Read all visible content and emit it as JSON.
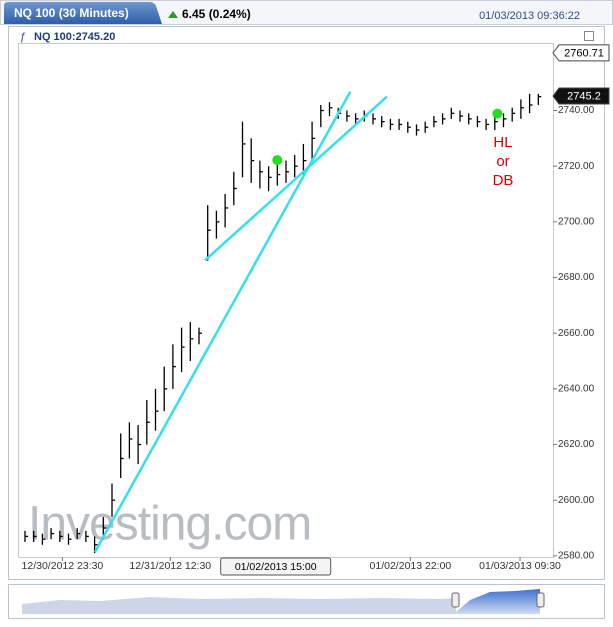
{
  "chart_data": {
    "type": "ohlc",
    "title": "NQ 100 (30 Minutes)",
    "change": "6.45 (0.24%)",
    "timestamp": "01/03/2013 09:36:22",
    "symbol_label": "NQ 100:2745.20",
    "color": "#000000",
    "high": [
      2589,
      2589,
      2588,
      2590,
      2589,
      2588,
      2590,
      2589,
      2587,
      2594,
      2606,
      2624,
      2628,
      2627,
      2636,
      2640,
      2648,
      2656,
      2662,
      2664,
      2662,
      2706,
      2704,
      2710,
      2718,
      2736,
      2730,
      2722,
      2720,
      2721,
      2722,
      2724,
      2728,
      2736,
      2742,
      2743,
      2741,
      2740,
      2739,
      2740,
      2739,
      2738,
      2737,
      2737,
      2736,
      2735,
      2736,
      2738,
      2739,
      2741,
      2740,
      2739,
      2738,
      2737,
      2738,
      2739,
      2741,
      2744,
      2746,
      2746
    ],
    "low": [
      2585,
      2585,
      2584,
      2586,
      2585,
      2584,
      2586,
      2585,
      2581,
      2586,
      2594,
      2608,
      2615,
      2613,
      2620,
      2625,
      2632,
      2640,
      2646,
      2650,
      2656,
      2686,
      2694,
      2698,
      2706,
      2716,
      2714,
      2712,
      2711,
      2713,
      2714,
      2716,
      2717,
      2722,
      2734,
      2738,
      2737,
      2736,
      2735,
      2736,
      2735,
      2734,
      2733,
      2733,
      2732,
      2731,
      2732,
      2734,
      2735,
      2737,
      2736,
      2735,
      2734,
      2733,
      2733,
      2734,
      2736,
      2737,
      2739,
      2742
    ],
    "close": [
      2587,
      2587,
      2586,
      2588,
      2587,
      2586,
      2588,
      2587,
      2584,
      2590,
      2600,
      2615,
      2622,
      2620,
      2628,
      2632,
      2640,
      2648,
      2655,
      2658,
      2660,
      2697,
      2700,
      2705,
      2712,
      2728,
      2722,
      2718,
      2716,
      2717,
      2718,
      2720,
      2722,
      2730,
      2740,
      2741,
      2739,
      2738,
      2737,
      2738,
      2737,
      2736,
      2735,
      2735,
      2734,
      2733,
      2734,
      2736,
      2737,
      2739,
      2738,
      2737,
      2736,
      2735,
      2736,
      2737,
      2739,
      2741,
      2742,
      2745
    ],
    "ylim": [
      2579.6,
      2763.9
    ],
    "yticks": [
      {
        "value": 2580,
        "label": "2580.00"
      },
      {
        "value": 2600,
        "label": "2600.00"
      },
      {
        "value": 2620,
        "label": "2620.00"
      },
      {
        "value": 2640,
        "label": "2640.00"
      },
      {
        "value": 2660,
        "label": "2660.00"
      },
      {
        "value": 2680,
        "label": "2680.00"
      },
      {
        "value": 2700,
        "label": "2700.00"
      },
      {
        "value": 2720,
        "label": "2720.00"
      },
      {
        "value": 2740,
        "label": "2740.00"
      }
    ],
    "xticks": [
      {
        "value": 4.3,
        "label": "12/30/2012 23:30"
      },
      {
        "value": 16.7,
        "label": "12/31/2012 12:30"
      },
      {
        "value": 44.3,
        "label": "01/02/2013 22:00"
      },
      {
        "value": 56.9,
        "label": "01/03/2013 09:30"
      }
    ],
    "crosshair": {
      "value": 28.7,
      "label": "01/02/2013 15:00"
    },
    "price_labels": [
      {
        "value": 2760.71,
        "label": "2760.71"
      },
      {
        "value": 2745.2,
        "label": "2745.2"
      }
    ],
    "trendlines": [
      {
        "x": [
          8.05,
          37.4
        ],
        "y": [
          2581.4,
          2746.8
        ],
        "color": "#33e0f0"
      },
      {
        "x": [
          20.7,
          41.6
        ],
        "y": [
          2686.2,
          2745.0
        ],
        "color": "#33e0f0"
      }
    ],
    "markers": {
      "x": [
        29,
        54.3
      ],
      "y": [
        2722.2,
        2738.9
      ],
      "color": "#22dd22"
    },
    "annotation": {
      "lines": [
        "HL",
        "or",
        "DB"
      ],
      "color": "#dd0000"
    },
    "watermark": "Investing.com",
    "grid": false
  }
}
